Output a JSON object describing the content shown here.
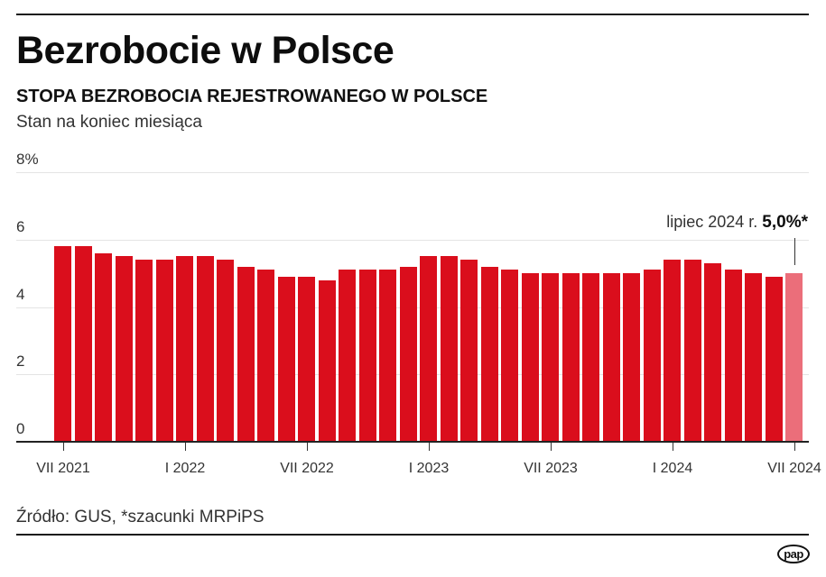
{
  "header": {
    "title": "Bezrobocie w Polsce",
    "subtitle": "STOPA BEZROBOCIA REJESTROWANEGO W POLSCE",
    "note": "Stan na koniec miesiąca"
  },
  "annotation": {
    "label": "lipiec 2024 r.",
    "value": "5,0%*"
  },
  "footer": {
    "source": "Źródło: GUS, *szacunki MRPiPS",
    "logo": "pap"
  },
  "colors": {
    "bar": "#da0e1c",
    "bar_estimate": "#eb6e7a"
  },
  "chart_data": {
    "type": "bar",
    "title": "STOPA BEZROBOCIA REJESTROWANEGO W POLSCE",
    "subtitle": "Stan na koniec miesiąca",
    "xlabel": "",
    "ylabel": "%",
    "ylim": [
      0,
      8
    ],
    "yticks": [
      "0",
      "2",
      "4",
      "6",
      "8%"
    ],
    "grid": true,
    "legend": null,
    "xtick_labels": [
      {
        "index": 0,
        "label": "VII 2021"
      },
      {
        "index": 6,
        "label": "I 2022"
      },
      {
        "index": 12,
        "label": "VII 2022"
      },
      {
        "index": 18,
        "label": "I 2023"
      },
      {
        "index": 24,
        "label": "VII 2023"
      },
      {
        "index": 30,
        "label": "I 2024"
      },
      {
        "index": 36,
        "label": "VII 2024"
      }
    ],
    "categories": [
      "VII 2021",
      "VIII 2021",
      "IX 2021",
      "X 2021",
      "XI 2021",
      "XII 2021",
      "I 2022",
      "II 2022",
      "III 2022",
      "IV 2022",
      "V 2022",
      "VI 2022",
      "VII 2022",
      "VIII 2022",
      "IX 2022",
      "X 2022",
      "XI 2022",
      "XII 2022",
      "I 2023",
      "II 2023",
      "III 2023",
      "IV 2023",
      "V 2023",
      "VI 2023",
      "VII 2023",
      "VIII 2023",
      "IX 2023",
      "X 2023",
      "XI 2023",
      "XII 2023",
      "I 2024",
      "II 2024",
      "III 2024",
      "IV 2024",
      "V 2024",
      "VI 2024",
      "VII 2024"
    ],
    "values": [
      5.8,
      5.8,
      5.6,
      5.5,
      5.4,
      5.4,
      5.5,
      5.5,
      5.4,
      5.2,
      5.1,
      4.9,
      4.9,
      4.8,
      5.1,
      5.1,
      5.1,
      5.2,
      5.5,
      5.5,
      5.4,
      5.2,
      5.1,
      5.0,
      5.0,
      5.0,
      5.0,
      5.0,
      5.0,
      5.1,
      5.4,
      5.4,
      5.3,
      5.1,
      5.0,
      4.9,
      5.0
    ],
    "estimated_indices": [
      36
    ],
    "annotations": [
      {
        "index": 36,
        "text": "lipiec 2024 r. 5,0%*"
      }
    ]
  }
}
